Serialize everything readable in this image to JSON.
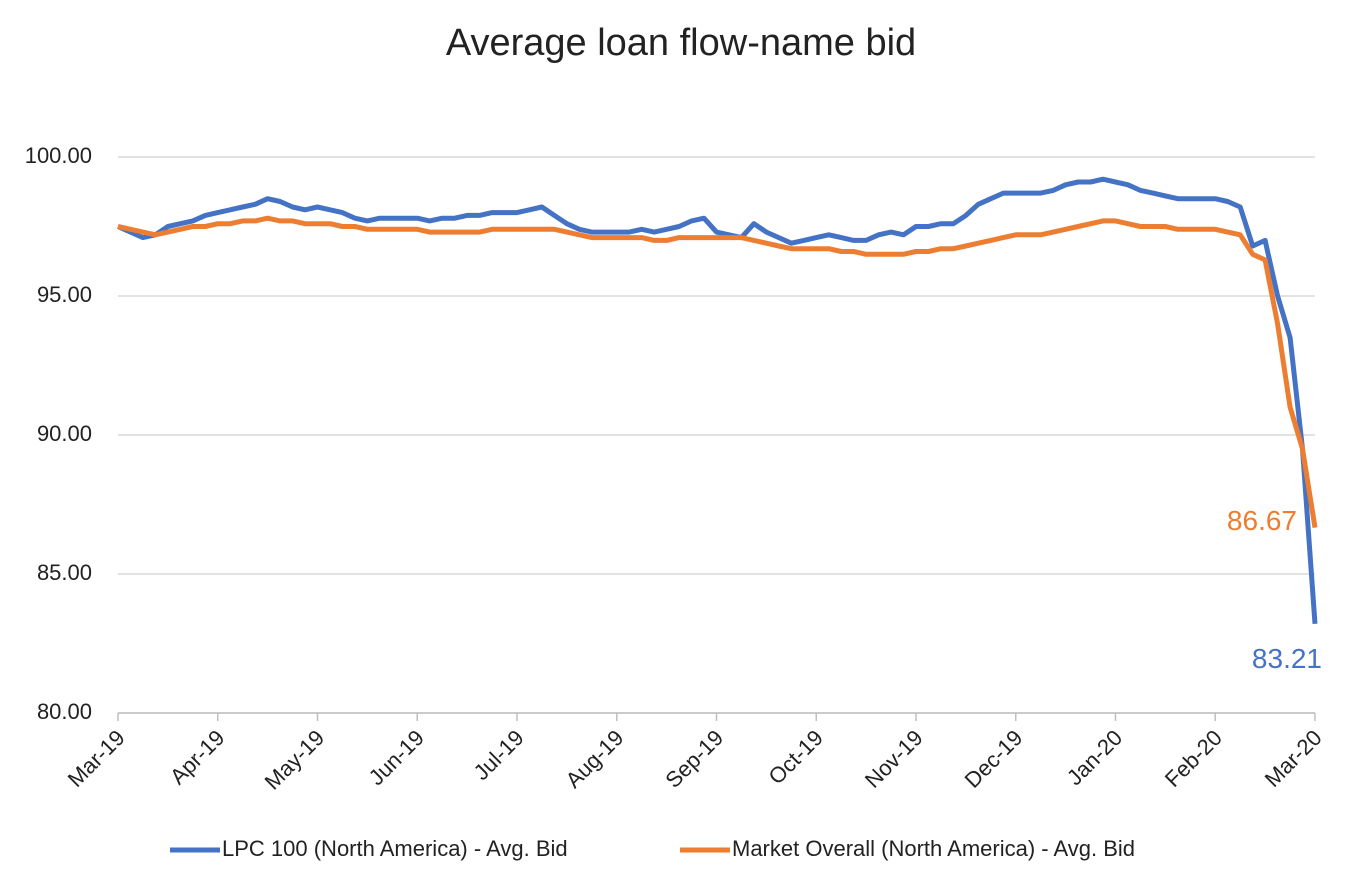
{
  "chart_data": {
    "type": "line",
    "title": "Average loan flow-name bid",
    "categories": [
      "Mar-19",
      null,
      null,
      null,
      null,
      null,
      null,
      null,
      "Apr-19",
      null,
      null,
      null,
      null,
      null,
      null,
      null,
      "May-19",
      null,
      null,
      null,
      null,
      null,
      null,
      null,
      "Jun-19",
      null,
      null,
      null,
      null,
      null,
      null,
      null,
      "Jul-19",
      null,
      null,
      null,
      null,
      null,
      null,
      null,
      "Aug-19",
      null,
      null,
      null,
      null,
      null,
      null,
      null,
      "Sep-19",
      null,
      null,
      null,
      null,
      null,
      null,
      null,
      "Oct-19",
      null,
      null,
      null,
      null,
      null,
      null,
      null,
      "Nov-19",
      null,
      null,
      null,
      null,
      null,
      null,
      null,
      "Dec-19",
      null,
      null,
      null,
      null,
      null,
      null,
      null,
      "Jan-20",
      null,
      null,
      null,
      null,
      null,
      null,
      null,
      "Feb-20",
      null,
      null,
      null,
      null,
      null,
      null,
      null,
      "Mar-20"
    ],
    "series": [
      {
        "name": "LPC 100 (North America) - Avg. Bid",
        "color": "#4472c4",
        "values": [
          97.5,
          97.3,
          97.1,
          97.2,
          97.5,
          97.6,
          97.7,
          97.9,
          98.0,
          98.1,
          98.2,
          98.3,
          98.5,
          98.4,
          98.2,
          98.1,
          98.2,
          98.1,
          98.0,
          97.8,
          97.7,
          97.8,
          97.8,
          97.8,
          97.8,
          97.7,
          97.8,
          97.8,
          97.9,
          97.9,
          98.0,
          98.0,
          98.0,
          98.1,
          98.2,
          97.9,
          97.6,
          97.4,
          97.3,
          97.3,
          97.3,
          97.3,
          97.4,
          97.3,
          97.4,
          97.5,
          97.7,
          97.8,
          97.3,
          97.2,
          97.1,
          97.6,
          97.3,
          97.1,
          96.9,
          97.0,
          97.1,
          97.2,
          97.1,
          97.0,
          97.0,
          97.2,
          97.3,
          97.2,
          97.5,
          97.5,
          97.6,
          97.6,
          97.9,
          98.3,
          98.5,
          98.7,
          98.7,
          98.7,
          98.7,
          98.8,
          99.0,
          99.1,
          99.1,
          99.2,
          99.1,
          99.0,
          98.8,
          98.7,
          98.6,
          98.5,
          98.5,
          98.5,
          98.5,
          98.4,
          98.2,
          96.8,
          97.0,
          95.0,
          93.5,
          89.5,
          83.21
        ]
      },
      {
        "name": "Market Overall (North America) - Avg. Bid",
        "color": "#ed7d31",
        "values": [
          97.5,
          97.4,
          97.3,
          97.2,
          97.3,
          97.4,
          97.5,
          97.5,
          97.6,
          97.6,
          97.7,
          97.7,
          97.8,
          97.7,
          97.7,
          97.6,
          97.6,
          97.6,
          97.5,
          97.5,
          97.4,
          97.4,
          97.4,
          97.4,
          97.4,
          97.3,
          97.3,
          97.3,
          97.3,
          97.3,
          97.4,
          97.4,
          97.4,
          97.4,
          97.4,
          97.4,
          97.3,
          97.2,
          97.1,
          97.1,
          97.1,
          97.1,
          97.1,
          97.0,
          97.0,
          97.1,
          97.1,
          97.1,
          97.1,
          97.1,
          97.1,
          97.0,
          96.9,
          96.8,
          96.7,
          96.7,
          96.7,
          96.7,
          96.6,
          96.6,
          96.5,
          96.5,
          96.5,
          96.5,
          96.6,
          96.6,
          96.7,
          96.7,
          96.8,
          96.9,
          97.0,
          97.1,
          97.2,
          97.2,
          97.2,
          97.3,
          97.4,
          97.5,
          97.6,
          97.7,
          97.7,
          97.6,
          97.5,
          97.5,
          97.5,
          97.4,
          97.4,
          97.4,
          97.4,
          97.3,
          97.2,
          96.5,
          96.3,
          94.0,
          91.0,
          89.5,
          86.67
        ]
      }
    ],
    "ylim": [
      80,
      100
    ],
    "yticks": [
      {
        "value": 80,
        "label": "80.00"
      },
      {
        "value": 85,
        "label": "85.00"
      },
      {
        "value": 90,
        "label": "90.00"
      },
      {
        "value": 95,
        "label": "95.00"
      },
      {
        "value": 100,
        "label": "100.00"
      }
    ],
    "grid": true,
    "legend": "bottom"
  }
}
